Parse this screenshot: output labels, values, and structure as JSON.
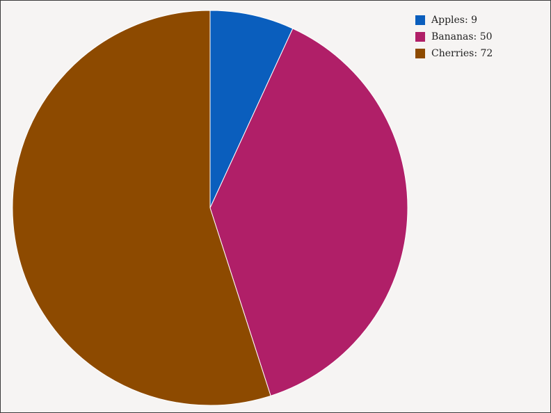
{
  "chart_data": {
    "type": "pie",
    "title": "",
    "slices": [
      {
        "label": "Apples",
        "value": 9,
        "color": "#0a5ebd"
      },
      {
        "label": "Bananas",
        "value": 50,
        "color": "#b01f68"
      },
      {
        "label": "Cherries",
        "value": 72,
        "color": "#8d4a00"
      }
    ],
    "start_angle": "12 o'clock",
    "direction": "clockwise",
    "legend": {
      "position": "top-right",
      "entries": [
        "Apples: 9",
        "Bananas: 50",
        "Cherries: 72"
      ]
    },
    "slice_border_color": "#ffffff",
    "background": "#f6f4f3"
  }
}
